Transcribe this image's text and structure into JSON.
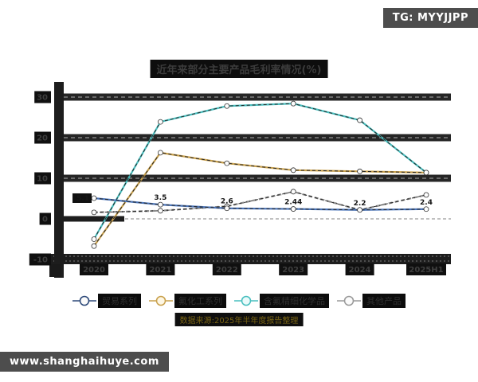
{
  "badges": {
    "tg": "TG: MYYJJPP",
    "site": "www.shanghaihuye.com"
  },
  "chart_data": {
    "type": "line",
    "title": "近年来部分主要产品毛利率情况(%)",
    "categories": [
      "2020",
      "2021",
      "2022",
      "2023",
      "2024",
      "2025H1"
    ],
    "y_ticks": [
      30,
      20,
      10,
      0,
      -10
    ],
    "ylim": [
      -10,
      33
    ],
    "grid": "horizontal-dashed-dark-bars",
    "legend_position": "bottom",
    "series": [
      {
        "name": "贸易系列",
        "color": "#4a74b8",
        "ring": "#2e4a7a",
        "style": "solid",
        "values": [
          5.1,
          3.5,
          2.6,
          2.44,
          2.2,
          2.4
        ],
        "point_labels": [
          "5.1",
          "3.5",
          "2.6",
          "2.44",
          "2.2",
          "2.4"
        ]
      },
      {
        "name": "氟化工系列",
        "color": "#c9a14d",
        "ring": "#c9a14d",
        "style": "solid",
        "values": [
          -6.7,
          16.3,
          13.7,
          12.0,
          11.7,
          11.4
        ],
        "point_labels": []
      },
      {
        "name": "含氟精细化学品",
        "color": "#49bfbf",
        "ring": "#49bfbf",
        "style": "solid",
        "values": [
          -5.0,
          23.9,
          27.8,
          28.4,
          24.3,
          11.4
        ],
        "point_labels": []
      },
      {
        "name": "其他产品",
        "color": "#8c8c8c",
        "ring": "#9a9a9a",
        "style": "dashed",
        "values": [
          1.6,
          2.0,
          3.1,
          6.7,
          2.2,
          5.9
        ],
        "point_labels": []
      }
    ],
    "source_note": "数据来源:2025年半年度报告整理"
  }
}
